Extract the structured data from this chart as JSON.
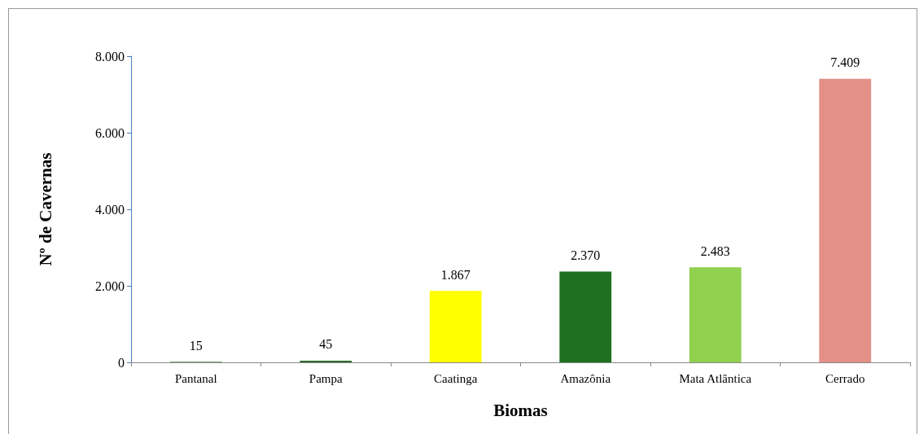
{
  "chart_data": {
    "type": "bar",
    "xlabel": "Biomas",
    "ylabel": "Nº de Cavernas",
    "categories": [
      "Pantanal",
      "Pampa",
      "Caatinga",
      "Amazônia",
      "Mata Atlântica",
      "Cerrado"
    ],
    "values": [
      15,
      45,
      1867,
      2370,
      2483,
      7409
    ],
    "colors": [
      "#5a8a4a",
      "#2e6b2e",
      "#ffff00",
      "#1e7020",
      "#92d050",
      "#e39088"
    ],
    "value_labels": [
      "15",
      "45",
      "1.867",
      "2.370",
      "2.483",
      "7.409"
    ],
    "ylim": [
      0,
      8000
    ],
    "yticks": [
      {
        "value": 0,
        "label": "0"
      },
      {
        "value": 2000,
        "label": "2.000"
      },
      {
        "value": 4000,
        "label": "4.000"
      },
      {
        "value": 6000,
        "label": "6.000"
      },
      {
        "value": 8000,
        "label": "8.000"
      }
    ],
    "grid": false
  }
}
